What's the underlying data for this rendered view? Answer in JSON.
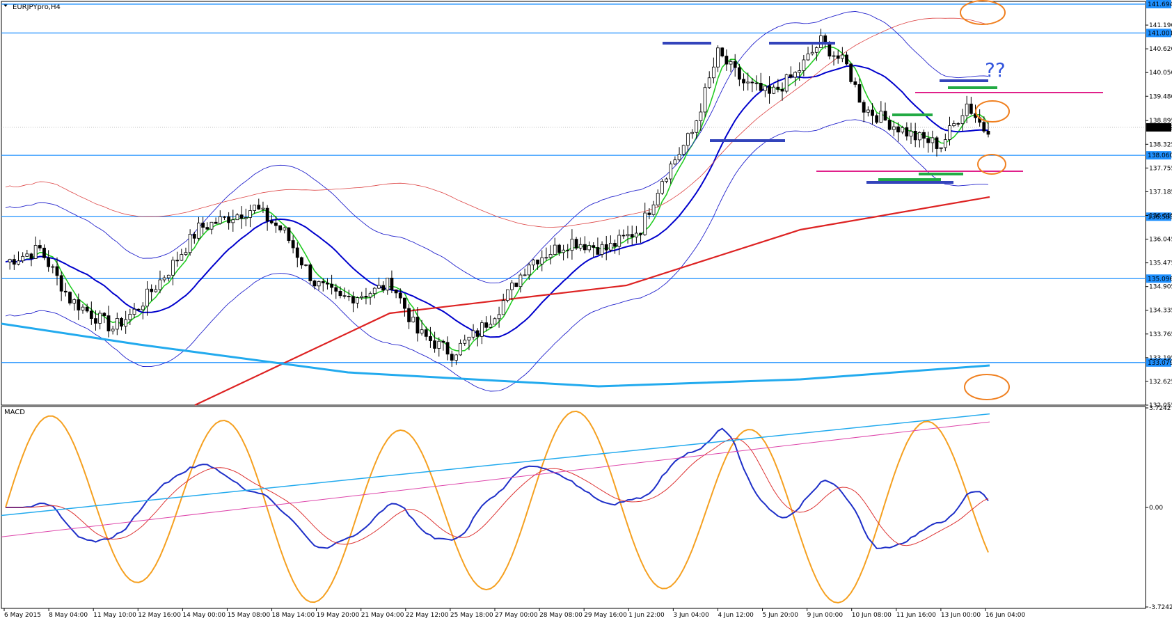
{
  "chart_data": {
    "type": "candlestick",
    "title": "EURJPYpro,H4",
    "price_axis": {
      "min": 132.055,
      "max": 141.76,
      "ticks": [
        "141.190",
        "140.620",
        "140.050",
        "139.480",
        "138.895",
        "138.325",
        "137.755",
        "137.185",
        "136.615",
        "136.045",
        "135.475",
        "134.905",
        "134.335",
        "133.765",
        "133.195",
        "132.625",
        "132.055"
      ]
    },
    "price_level_lines": [
      {
        "value": 141.694,
        "label": "141.694",
        "color": "#1e90ff"
      },
      {
        "value": 141.001,
        "label": "141.001",
        "color": "#1e90ff"
      },
      {
        "value": 138.06,
        "label": "138.060",
        "color": "#1e90ff"
      },
      {
        "value": 136.585,
        "label": "136.585",
        "color": "#1e90ff"
      },
      {
        "value": 135.096,
        "label": "135.096",
        "color": "#1e90ff"
      },
      {
        "value": 133.079,
        "label": "133.079",
        "color": "#1e90ff"
      }
    ],
    "current_price": {
      "value": 138.732,
      "label": "138.732"
    },
    "time_labels": [
      "6 May 2015",
      "8 May 04:00",
      "11 May 10:00",
      "12 May 16:00",
      "14 May 00:00",
      "15 May 08:00",
      "18 May 14:00",
      "19 May 20:00",
      "21 May 04:00",
      "22 May 12:00",
      "25 May 18:00",
      "27 May 00:00",
      "28 May 08:00",
      "29 May 16:00",
      "1 Jun 22:00",
      "3 Jun 04:00",
      "4 Jun 12:00",
      "5 Jun 20:00",
      "9 Jun 00:00",
      "10 Jun 08:00",
      "11 Jun 16:00",
      "13 Jun 00:00",
      "16 Jun 04:00"
    ],
    "annotation_text": "??",
    "macd": {
      "label": "MACD",
      "ticks": [
        "3.7242",
        "0.00",
        "-3.7242"
      ],
      "min": -3.7242,
      "max": 3.7242
    },
    "colors": {
      "bollinger": "#2222cc",
      "ma_fast": "#22cc22",
      "ma_mid": "#0000cc",
      "ma_slow": "#dd2222",
      "ma_long": "#22aaee",
      "envelope": "#dd4444",
      "levels": "#1e90ff",
      "support_resistance_magenta": "#e0208a",
      "circles": "#f08020",
      "annotation": "#3355dd",
      "osc": "#f5a020"
    }
  }
}
